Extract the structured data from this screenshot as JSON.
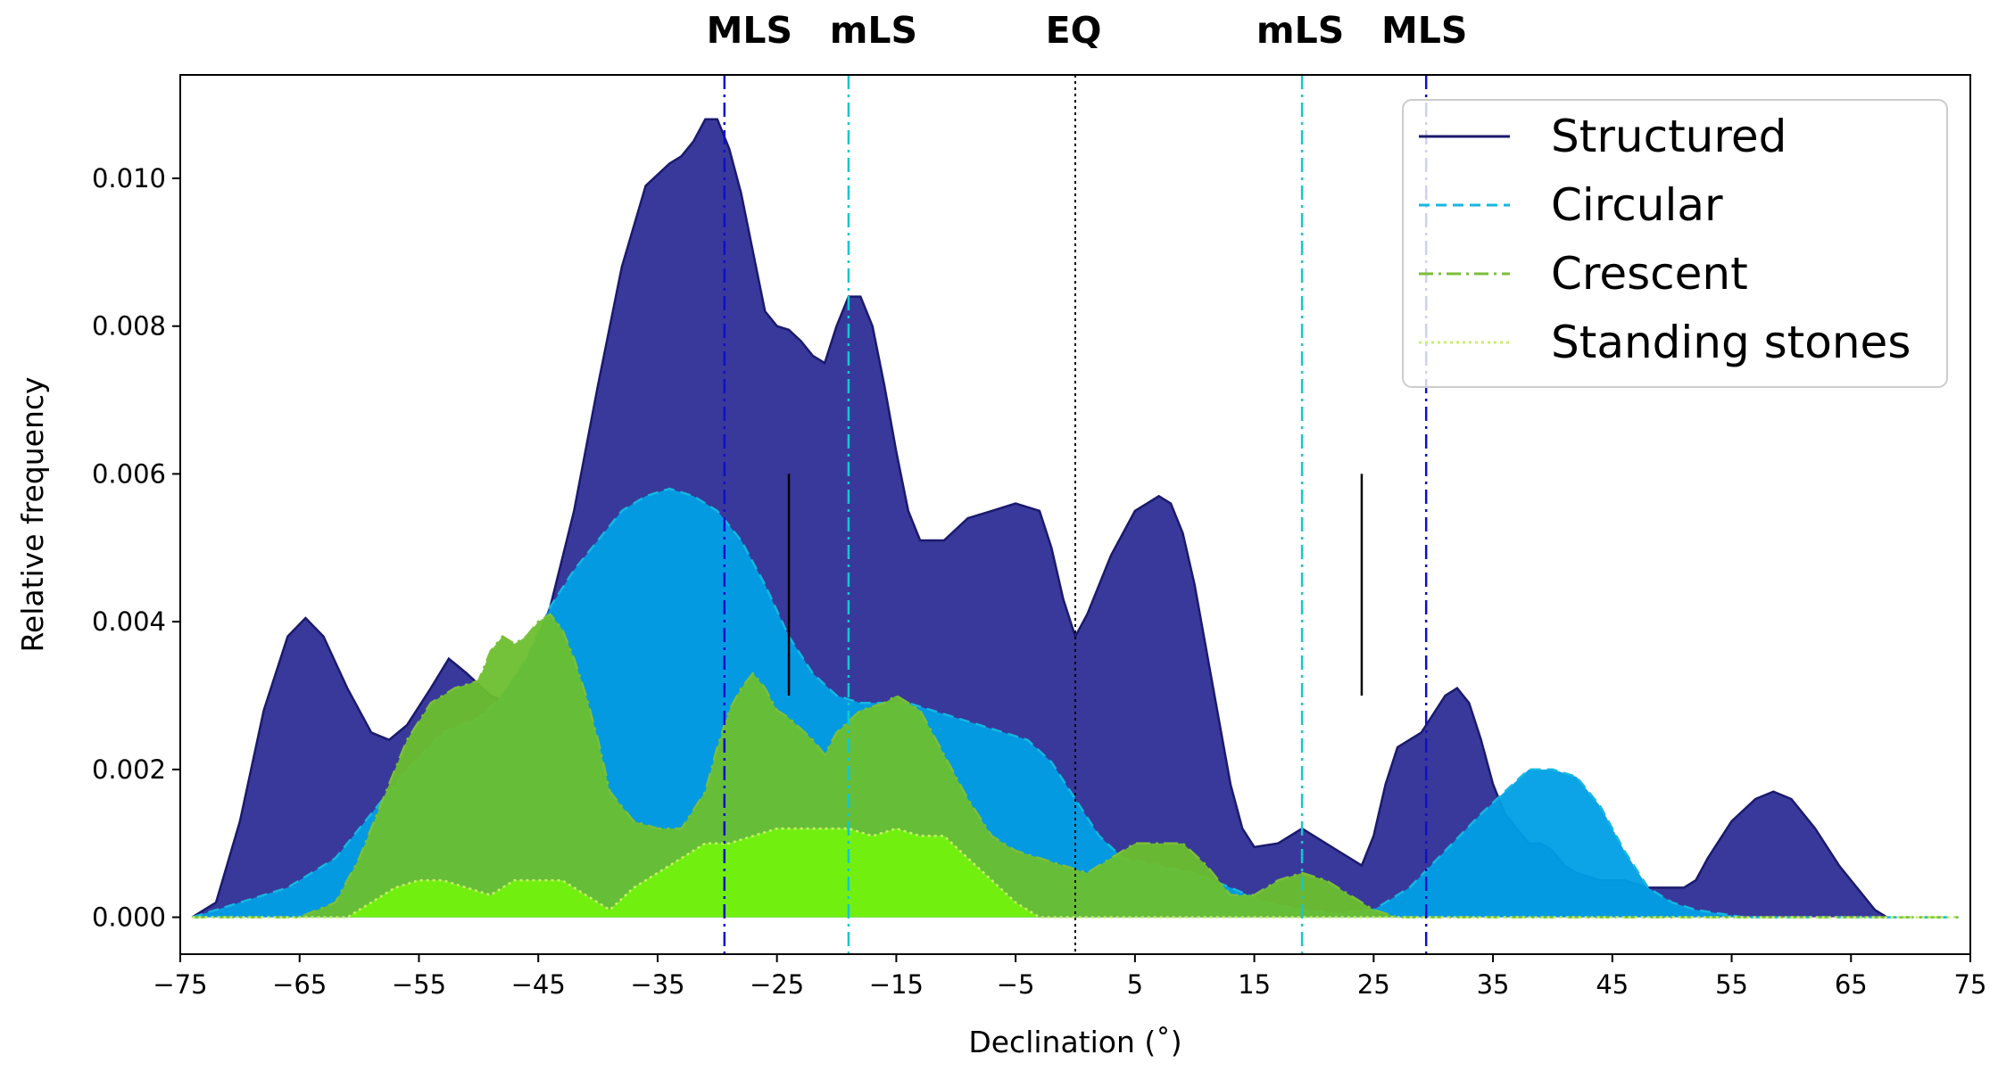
{
  "chart_data": {
    "type": "area",
    "title": "",
    "xlabel": "Declination (˚)",
    "ylabel": "Relative frequency",
    "xlim": [
      -75,
      75
    ],
    "ylim": [
      -0.0005,
      0.0114
    ],
    "xticks": [
      -75,
      -65,
      -55,
      -45,
      -35,
      -25,
      -15,
      -5,
      5,
      15,
      25,
      35,
      45,
      55,
      65,
      75
    ],
    "xtick_labels": [
      "−75",
      "−65",
      "−55",
      "−45",
      "−35",
      "−25",
      "−15",
      "−5",
      "5",
      "15",
      "25",
      "35",
      "45",
      "55",
      "65",
      "75"
    ],
    "yticks": [
      0.0,
      0.002,
      0.004,
      0.006,
      0.008,
      0.01
    ],
    "ytick_labels": [
      "0.000",
      "0.002",
      "0.004",
      "0.006",
      "0.008",
      "0.010"
    ],
    "legend_position": "top-right",
    "series": [
      {
        "name": "Structured",
        "fill_color": "#2e2e96",
        "line_color": "#1a1a6e",
        "line_style": "solid",
        "points": [
          [
            -74,
            0
          ],
          [
            -72,
            0.0002
          ],
          [
            -70,
            0.0013
          ],
          [
            -68,
            0.0028
          ],
          [
            -66,
            0.0038
          ],
          [
            -64.5,
            0.00405
          ],
          [
            -63,
            0.0038
          ],
          [
            -61,
            0.0031
          ],
          [
            -59,
            0.0025
          ],
          [
            -57.5,
            0.0024
          ],
          [
            -56,
            0.0026
          ],
          [
            -54,
            0.0031
          ],
          [
            -52.5,
            0.0035
          ],
          [
            -51,
            0.0033
          ],
          [
            -49,
            0.003
          ],
          [
            -47.5,
            0.0029
          ],
          [
            -46,
            0.0033
          ],
          [
            -44,
            0.0042
          ],
          [
            -42,
            0.0055
          ],
          [
            -40,
            0.0072
          ],
          [
            -38,
            0.0088
          ],
          [
            -36,
            0.0099
          ],
          [
            -34,
            0.0102
          ],
          [
            -33,
            0.0103
          ],
          [
            -32,
            0.0105
          ],
          [
            -31,
            0.0108
          ],
          [
            -30,
            0.0108
          ],
          [
            -29,
            0.0104
          ],
          [
            -28,
            0.0098
          ],
          [
            -27,
            0.009
          ],
          [
            -26,
            0.0082
          ],
          [
            -25,
            0.008
          ],
          [
            -24,
            0.00795
          ],
          [
            -23,
            0.0078
          ],
          [
            -22,
            0.0076
          ],
          [
            -21,
            0.0075
          ],
          [
            -20,
            0.008
          ],
          [
            -19,
            0.0084
          ],
          [
            -18,
            0.0084
          ],
          [
            -17,
            0.008
          ],
          [
            -16,
            0.0072
          ],
          [
            -15,
            0.0063
          ],
          [
            -14,
            0.0055
          ],
          [
            -13,
            0.0051
          ],
          [
            -11,
            0.0051
          ],
          [
            -9,
            0.0054
          ],
          [
            -7,
            0.0055
          ],
          [
            -5,
            0.0056
          ],
          [
            -3,
            0.0055
          ],
          [
            -2,
            0.005
          ],
          [
            -1,
            0.0043
          ],
          [
            0,
            0.0038
          ],
          [
            1,
            0.0041
          ],
          [
            3,
            0.0049
          ],
          [
            5,
            0.0055
          ],
          [
            7,
            0.0057
          ],
          [
            8,
            0.0056
          ],
          [
            9,
            0.0052
          ],
          [
            10,
            0.0045
          ],
          [
            11,
            0.0036
          ],
          [
            12,
            0.0027
          ],
          [
            13,
            0.0018
          ],
          [
            14,
            0.0012
          ],
          [
            15,
            0.00095
          ],
          [
            17,
            0.001
          ],
          [
            19,
            0.0012
          ],
          [
            20,
            0.0011
          ],
          [
            22,
            0.0009
          ],
          [
            23,
            0.0008
          ],
          [
            24,
            0.0007
          ],
          [
            25,
            0.0011
          ],
          [
            26,
            0.0018
          ],
          [
            27,
            0.0023
          ],
          [
            29,
            0.0025
          ],
          [
            31,
            0.003
          ],
          [
            32,
            0.0031
          ],
          [
            33,
            0.0029
          ],
          [
            34,
            0.0024
          ],
          [
            35,
            0.0018
          ],
          [
            36,
            0.0014
          ],
          [
            37,
            0.0012
          ],
          [
            38,
            0.001
          ],
          [
            39,
            0.001
          ],
          [
            40,
            0.0009
          ],
          [
            41,
            0.0007
          ],
          [
            42,
            0.0006
          ],
          [
            44,
            0.0005
          ],
          [
            46,
            0.0005
          ],
          [
            48,
            0.0004
          ],
          [
            50,
            0.0004
          ],
          [
            51,
            0.0004
          ],
          [
            52,
            0.0005
          ],
          [
            53,
            0.0008
          ],
          [
            55,
            0.0013
          ],
          [
            57,
            0.0016
          ],
          [
            58.5,
            0.0017
          ],
          [
            60,
            0.0016
          ],
          [
            62,
            0.0012
          ],
          [
            64,
            0.0007
          ],
          [
            66,
            0.0003
          ],
          [
            67,
            0.0001
          ],
          [
            68,
            0
          ]
        ]
      },
      {
        "name": "Circular",
        "fill_color": "#009fe6",
        "line_color": "#16b7df",
        "line_style": "dashed",
        "points": [
          [
            -74,
            0
          ],
          [
            -70,
            0.0002
          ],
          [
            -66,
            0.0004
          ],
          [
            -62,
            0.0008
          ],
          [
            -59,
            0.0014
          ],
          [
            -56,
            0.002
          ],
          [
            -53,
            0.0025
          ],
          [
            -50,
            0.0027
          ],
          [
            -48,
            0.003
          ],
          [
            -46,
            0.0035
          ],
          [
            -44,
            0.0042
          ],
          [
            -42,
            0.0047
          ],
          [
            -40,
            0.0051
          ],
          [
            -38,
            0.0055
          ],
          [
            -36,
            0.0057
          ],
          [
            -34,
            0.0058
          ],
          [
            -32,
            0.0057
          ],
          [
            -30,
            0.0055
          ],
          [
            -28,
            0.0051
          ],
          [
            -26,
            0.0045
          ],
          [
            -24,
            0.0038
          ],
          [
            -22,
            0.0033
          ],
          [
            -20,
            0.003
          ],
          [
            -18,
            0.0029
          ],
          [
            -16,
            0.0029
          ],
          [
            -14,
            0.0029
          ],
          [
            -12,
            0.0028
          ],
          [
            -10,
            0.0027
          ],
          [
            -8,
            0.0026
          ],
          [
            -6,
            0.0025
          ],
          [
            -4,
            0.0024
          ],
          [
            -2,
            0.0021
          ],
          [
            0,
            0.0016
          ],
          [
            2,
            0.0011
          ],
          [
            4,
            0.0008
          ],
          [
            7,
            0.0007
          ],
          [
            10,
            0.0006
          ],
          [
            13,
            0.0004
          ],
          [
            16,
            0.0002
          ],
          [
            19,
            0.0001
          ],
          [
            22,
            5e-05
          ],
          [
            25,
            0.0001
          ],
          [
            28,
            0.0004
          ],
          [
            31,
            0.0009
          ],
          [
            34,
            0.0014
          ],
          [
            36,
            0.0017
          ],
          [
            38,
            0.002
          ],
          [
            40,
            0.002
          ],
          [
            42,
            0.0019
          ],
          [
            44,
            0.0015
          ],
          [
            46,
            0.0009
          ],
          [
            48,
            0.0004
          ],
          [
            50,
            0.0002
          ],
          [
            52,
            0.0001
          ],
          [
            56,
            0
          ],
          [
            74,
            0
          ]
        ]
      },
      {
        "name": "Crescent",
        "fill_color": "#6bbf2e",
        "line_color": "#7bbf3a",
        "line_style": "dashdot",
        "points": [
          [
            -74,
            0
          ],
          [
            -65,
            0
          ],
          [
            -62,
            0.0002
          ],
          [
            -60,
            0.0008
          ],
          [
            -58,
            0.0016
          ],
          [
            -56,
            0.0024
          ],
          [
            -54,
            0.0029
          ],
          [
            -52,
            0.0031
          ],
          [
            -50,
            0.0032
          ],
          [
            -49,
            0.0036
          ],
          [
            -48,
            0.0038
          ],
          [
            -47,
            0.0037
          ],
          [
            -46,
            0.0038
          ],
          [
            -45,
            0.004
          ],
          [
            -44,
            0.0041
          ],
          [
            -43,
            0.0039
          ],
          [
            -42,
            0.0035
          ],
          [
            -41,
            0.003
          ],
          [
            -40,
            0.0024
          ],
          [
            -39,
            0.0017
          ],
          [
            -37,
            0.0013
          ],
          [
            -35,
            0.0012
          ],
          [
            -33,
            0.0012
          ],
          [
            -31,
            0.0017
          ],
          [
            -30,
            0.0023
          ],
          [
            -29,
            0.0028
          ],
          [
            -28,
            0.0031
          ],
          [
            -27,
            0.0033
          ],
          [
            -26,
            0.0031
          ],
          [
            -25,
            0.0028
          ],
          [
            -24,
            0.0027
          ],
          [
            -22,
            0.0024
          ],
          [
            -21,
            0.0022
          ],
          [
            -20,
            0.0025
          ],
          [
            -18,
            0.0028
          ],
          [
            -16,
            0.0029
          ],
          [
            -15,
            0.003
          ],
          [
            -13,
            0.0028
          ],
          [
            -11,
            0.0022
          ],
          [
            -9,
            0.0016
          ],
          [
            -7,
            0.0011
          ],
          [
            -5,
            0.0009
          ],
          [
            -3,
            0.0008
          ],
          [
            -1,
            0.0007
          ],
          [
            1,
            0.0006
          ],
          [
            3,
            0.0008
          ],
          [
            5,
            0.001
          ],
          [
            7,
            0.001
          ],
          [
            9,
            0.001
          ],
          [
            11,
            0.0007
          ],
          [
            13,
            0.0003
          ],
          [
            15,
            0.0003
          ],
          [
            17,
            0.0005
          ],
          [
            19,
            0.0006
          ],
          [
            21,
            0.0005
          ],
          [
            23,
            0.0003
          ],
          [
            25,
            0.0001
          ],
          [
            27,
            0
          ],
          [
            74,
            0
          ]
        ]
      },
      {
        "name": "Standing stones",
        "fill_color": "#72f20e",
        "line_color": "#c8f06a",
        "line_style": "dotted",
        "points": [
          [
            -74,
            0
          ],
          [
            -61,
            0
          ],
          [
            -59,
            0.0002
          ],
          [
            -57,
            0.0004
          ],
          [
            -55,
            0.0005
          ],
          [
            -53,
            0.0005
          ],
          [
            -51,
            0.0004
          ],
          [
            -49,
            0.0003
          ],
          [
            -47,
            0.0005
          ],
          [
            -45,
            0.0005
          ],
          [
            -43,
            0.0005
          ],
          [
            -41,
            0.0003
          ],
          [
            -39,
            0.0001
          ],
          [
            -37,
            0.0004
          ],
          [
            -35,
            0.0006
          ],
          [
            -33,
            0.0008
          ],
          [
            -31,
            0.001
          ],
          [
            -29,
            0.001
          ],
          [
            -27,
            0.0011
          ],
          [
            -25,
            0.0012
          ],
          [
            -23,
            0.0012
          ],
          [
            -21,
            0.0012
          ],
          [
            -19,
            0.0012
          ],
          [
            -17,
            0.0011
          ],
          [
            -15,
            0.0012
          ],
          [
            -13,
            0.0011
          ],
          [
            -11,
            0.0011
          ],
          [
            -9,
            0.0008
          ],
          [
            -7,
            0.0005
          ],
          [
            -5,
            0.0002
          ],
          [
            -3,
            0
          ],
          [
            74,
            0
          ]
        ]
      }
    ],
    "vertical_lines": [
      {
        "x": -29.4,
        "label": "MLS",
        "color": "#1010c8",
        "style": "dashdot"
      },
      {
        "x": -19.0,
        "label": "mLS",
        "color": "#12c8d0",
        "style": "dashdot"
      },
      {
        "x": 0.0,
        "label": "EQ",
        "color": "#000000",
        "style": "dotted"
      },
      {
        "x": 19.0,
        "label": "mLS",
        "color": "#12c8d0",
        "style": "dashdot"
      },
      {
        "x": 29.4,
        "label": "MLS",
        "color": "#1010c8",
        "style": "dashdot"
      }
    ],
    "range_bars": [
      {
        "x": -24,
        "y_from": 0.003,
        "y_to": 0.006
      },
      {
        "x": 24,
        "y_from": 0.003,
        "y_to": 0.006
      }
    ]
  }
}
